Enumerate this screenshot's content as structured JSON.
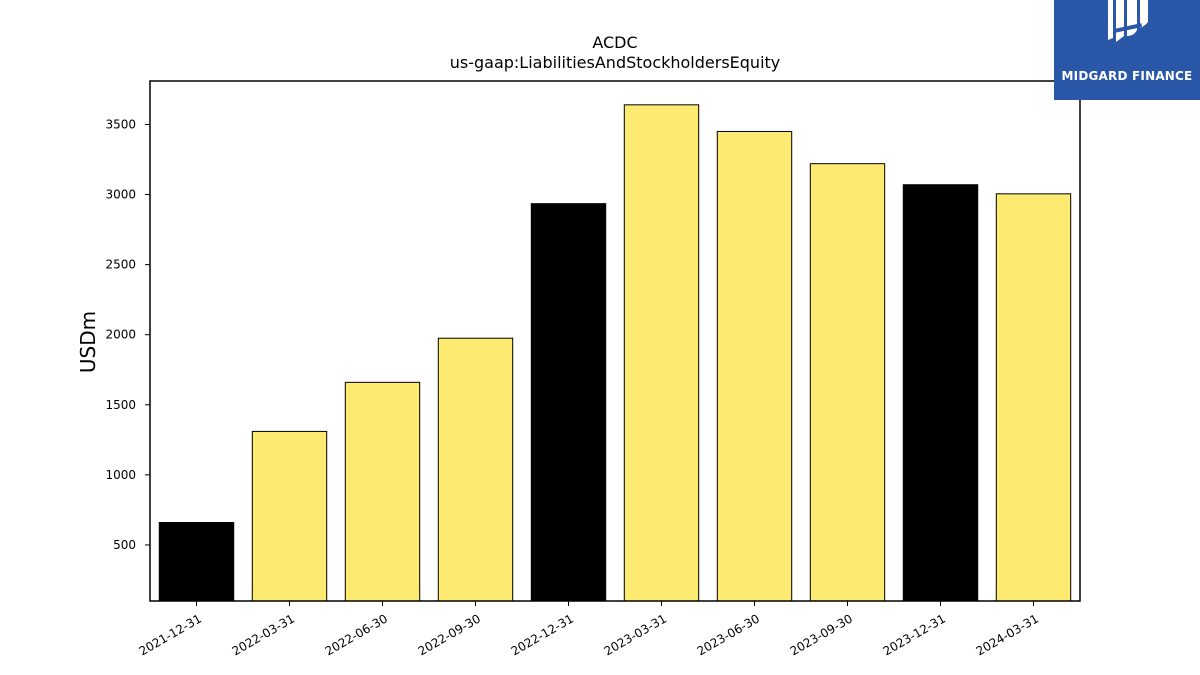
{
  "logo": {
    "text": "MIDGARD FINANCE",
    "background": "#2b57a8"
  },
  "chart_data": {
    "type": "bar",
    "title": "ACDC",
    "subtitle": "us-gaap:LiabilitiesAndStockholdersEquity",
    "xlabel": "",
    "ylabel": "USDm",
    "categories": [
      "2021-12-31",
      "2022-03-31",
      "2022-06-30",
      "2022-09-30",
      "2022-12-31",
      "2023-03-31",
      "2023-06-30",
      "2023-09-30",
      "2023-12-31",
      "2024-03-31"
    ],
    "values": [
      660,
      1310,
      1660,
      1975,
      2935,
      3640,
      3450,
      3220,
      3070,
      3005
    ],
    "bar_colors": [
      "#000000",
      "#fdeb71",
      "#fdeb71",
      "#fdeb71",
      "#000000",
      "#fdeb71",
      "#fdeb71",
      "#fdeb71",
      "#000000",
      "#fdeb71"
    ],
    "yticks": [
      500,
      1000,
      1500,
      2000,
      2500,
      3000,
      3500
    ],
    "ylim": [
      100,
      3810
    ],
    "grid": false,
    "legend": "none"
  }
}
